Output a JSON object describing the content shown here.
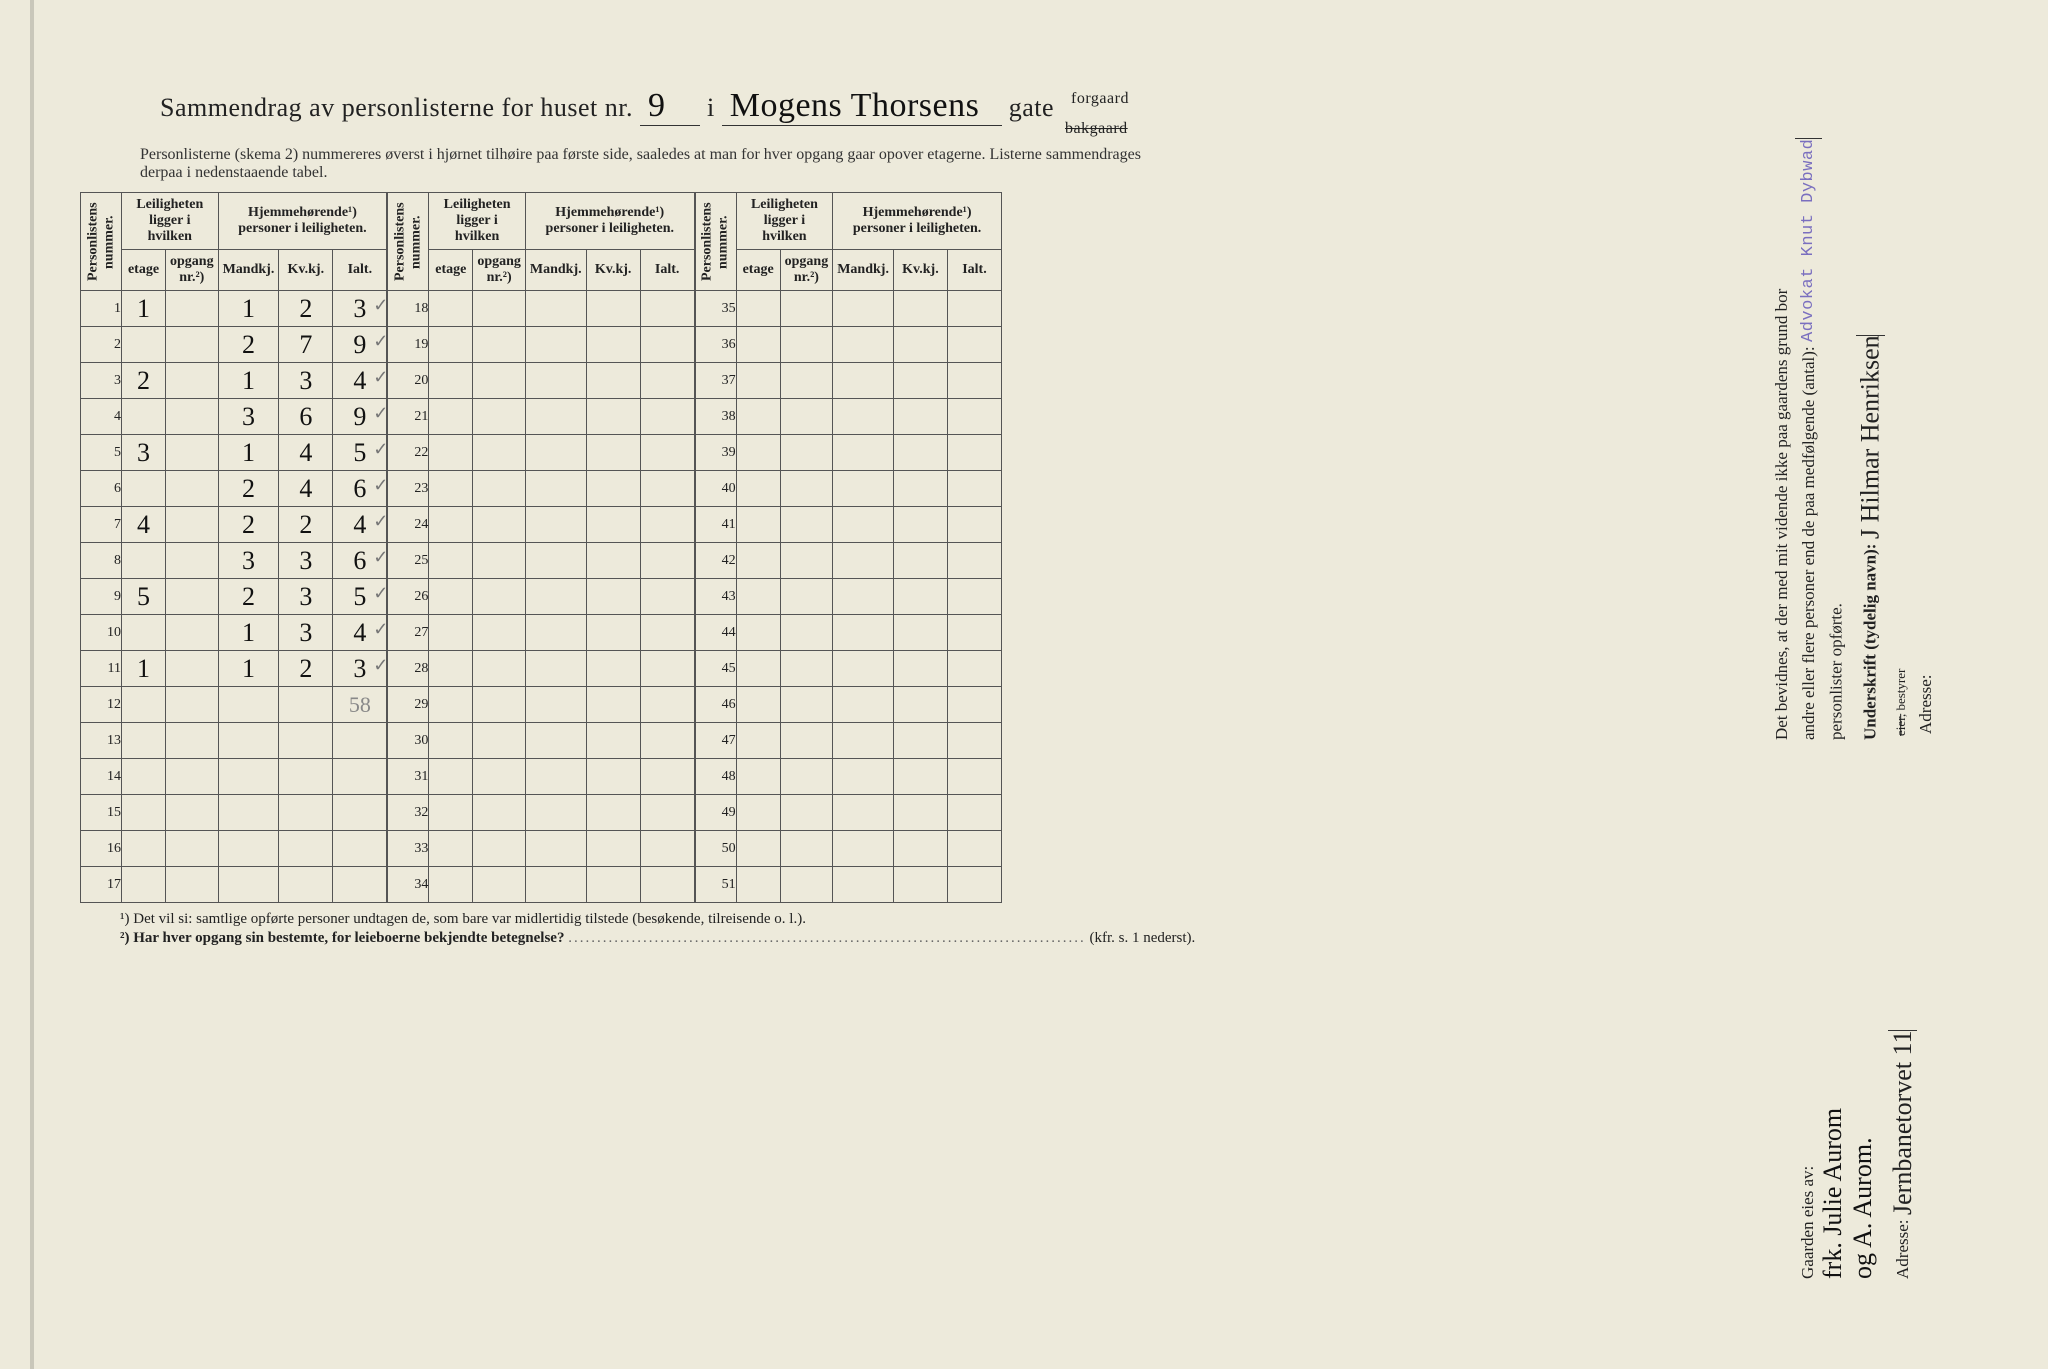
{
  "title": {
    "prefix": "Sammendrag av personlisterne for huset nr.",
    "house_nr": "9",
    "sep": "i",
    "street": "Mogens Thorsens",
    "gate": "gate",
    "forgaard": "forgaard",
    "bakgaard": "bakgaard"
  },
  "subtitle": "Personlisterne (skema 2) nummereres øverst i hjørnet tilhøire paa første side, saaledes at man for hver opgang gaar opover etagerne. Listerne sammendrages derpaa i nedenstaaende tabel.",
  "headers": {
    "personlistens": "Personlistens\nnummer.",
    "leilighet": "Leiligheten\nligger i hvilken",
    "hjemme": "Hjemmehørende¹)\npersoner i leiligheten.",
    "etage": "etage",
    "opgang": "opgang\nnr.²)",
    "mandkj": "Mandkj.",
    "kvkj": "Kv.kj.",
    "ialt": "Ialt."
  },
  "rows1": [
    {
      "n": 1,
      "etage": "1",
      "opg": "",
      "m": "1",
      "k": "2",
      "i": "3",
      "tick": "✓"
    },
    {
      "n": 2,
      "etage": "",
      "opg": "",
      "m": "2",
      "k": "7",
      "i": "9",
      "tick": "✓"
    },
    {
      "n": 3,
      "etage": "2",
      "opg": "",
      "m": "1",
      "k": "3",
      "i": "4",
      "tick": "✓"
    },
    {
      "n": 4,
      "etage": "",
      "opg": "",
      "m": "3",
      "k": "6",
      "i": "9",
      "tick": "✓"
    },
    {
      "n": 5,
      "etage": "3",
      "opg": "",
      "m": "1",
      "k": "4",
      "i": "5",
      "tick": "✓"
    },
    {
      "n": 6,
      "etage": "",
      "opg": "",
      "m": "2",
      "k": "4",
      "i": "6",
      "tick": "✓"
    },
    {
      "n": 7,
      "etage": "4",
      "opg": "",
      "m": "2",
      "k": "2",
      "i": "4",
      "tick": "✓"
    },
    {
      "n": 8,
      "etage": "",
      "opg": "",
      "m": "3",
      "k": "3",
      "i": "6",
      "tick": "✓"
    },
    {
      "n": 9,
      "etage": "5",
      "opg": "",
      "m": "2",
      "k": "3",
      "i": "5",
      "tick": "✓"
    },
    {
      "n": 10,
      "etage": "",
      "opg": "",
      "m": "1",
      "k": "3",
      "i": "4",
      "tick": "✓"
    },
    {
      "n": 11,
      "etage": "1",
      "opg": "",
      "m": "1",
      "k": "2",
      "i": "3",
      "tick": "✓"
    },
    {
      "n": 12,
      "etage": "",
      "opg": "",
      "m": "",
      "k": "",
      "i": "58",
      "sum": true
    },
    {
      "n": 13,
      "etage": "",
      "opg": "",
      "m": "",
      "k": "",
      "i": ""
    },
    {
      "n": 14,
      "etage": "",
      "opg": "",
      "m": "",
      "k": "",
      "i": ""
    },
    {
      "n": 15,
      "etage": "",
      "opg": "",
      "m": "",
      "k": "",
      "i": ""
    },
    {
      "n": 16,
      "etage": "",
      "opg": "",
      "m": "",
      "k": "",
      "i": ""
    },
    {
      "n": 17,
      "etage": "",
      "opg": "",
      "m": "",
      "k": "",
      "i": ""
    }
  ],
  "rows2_start": 18,
  "rows2_end": 34,
  "rows3_start": 35,
  "rows3_end": 51,
  "footnotes": {
    "f1": "¹) Det vil si: samtlige opførte personer undtagen de, som bare var midlertidig tilstede (besøkende, tilreisende o. l.).",
    "f2_a": "²) Har hver opgang sin bestemte, for leieboerne bekjendte betegnelse?",
    "f2_b": "(kfr. s. 1 nederst)."
  },
  "right": {
    "l1": "Det bevidnes, at der med mit vidende ikke paa gaardens grund bor",
    "l2": "andre eller flere personer end de paa medfølgende (antal):",
    "l3": "personlister opførte.",
    "stamp": "Advokat Knut Dybwad",
    "underskrift": "Underskrift (tydelig navn):",
    "sig": "J Hilmar Henriksen",
    "eier": "eier,",
    "bestyrer": "bestyrer",
    "adresse": "Adresse:"
  },
  "owner": {
    "label": "Gaarden eies av:",
    "line1": "frk. Julie Aurom",
    "line2": "og A. Aurom.",
    "addr_label": "Adresse:",
    "addr": "Jernbanetorvet 11"
  },
  "colors": {
    "paper": "#edeadb",
    "ink": "#222222",
    "stamp": "#7a6fbf",
    "pencil": "#888888",
    "border": "#555555"
  }
}
